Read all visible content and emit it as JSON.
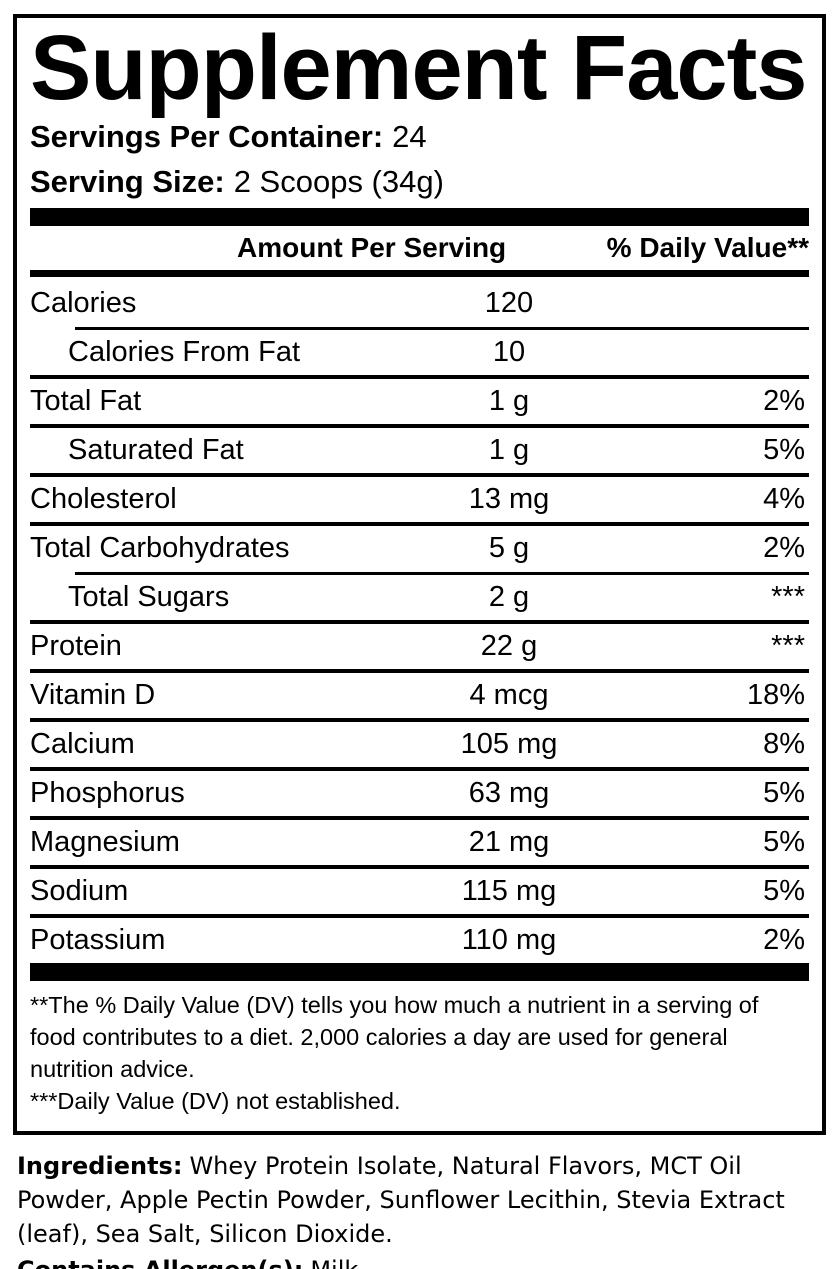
{
  "colors": {
    "ink": "#000000",
    "paper": "#ffffff"
  },
  "title": "Supplement Facts",
  "servings_per_container": {
    "label": "Servings Per Container:",
    "value": "24"
  },
  "serving_size": {
    "label": "Serving Size:",
    "value": "2 Scoops (34g)"
  },
  "table": {
    "amount_header": "Amount Per Serving",
    "dv_header": "% Daily Value**",
    "rows": [
      {
        "name": "Calories",
        "amount": "120",
        "dv": "",
        "indent": false,
        "rule": "none"
      },
      {
        "name": "Calories From Fat",
        "amount": "10",
        "dv": "",
        "indent": true,
        "rule": "indent"
      },
      {
        "name": "Total Fat",
        "amount": "1 g",
        "dv": "2%",
        "indent": false,
        "rule": "full"
      },
      {
        "name": "Saturated Fat",
        "amount": "1 g",
        "dv": "5%",
        "indent": true,
        "rule": "full"
      },
      {
        "name": "Cholesterol",
        "amount": "13 mg",
        "dv": "4%",
        "indent": false,
        "rule": "full"
      },
      {
        "name": "Total Carbohydrates",
        "amount": "5 g",
        "dv": "2%",
        "indent": false,
        "rule": "full"
      },
      {
        "name": "Total Sugars",
        "amount": "2 g",
        "dv": "***",
        "indent": true,
        "rule": "indent"
      },
      {
        "name": "Protein",
        "amount": "22 g",
        "dv": "***",
        "indent": false,
        "rule": "full"
      },
      {
        "name": "Vitamin D",
        "amount": "4 mcg",
        "dv": "18%",
        "indent": false,
        "rule": "full"
      },
      {
        "name": "Calcium",
        "amount": "105 mg",
        "dv": "8%",
        "indent": false,
        "rule": "full"
      },
      {
        "name": "Phosphorus",
        "amount": "63 mg",
        "dv": "5%",
        "indent": false,
        "rule": "full"
      },
      {
        "name": "Magnesium",
        "amount": "21 mg",
        "dv": "5%",
        "indent": false,
        "rule": "full"
      },
      {
        "name": "Sodium",
        "amount": "115 mg",
        "dv": "5%",
        "indent": false,
        "rule": "full"
      },
      {
        "name": "Potassium",
        "amount": "110 mg",
        "dv": "2%",
        "indent": false,
        "rule": "full"
      }
    ]
  },
  "footnotes": {
    "dv_note": "**The % Daily Value (DV) tells you how much a nutrient in a serving of food contributes to a diet. 2,000 calories a day are used for general nutrition advice.",
    "not_established_note": "***Daily Value (DV) not established."
  },
  "ingredients": {
    "label": "Ingredients:",
    "value": "Whey Protein Isolate, Natural Flavors, MCT Oil Powder, Apple Pectin Powder, Sunflower Lecithin, Stevia Extract (leaf), Sea Salt, Silicon Dioxide.",
    "allergen_label": "Contains Allergen(s):",
    "allergen_value": "Milk"
  }
}
